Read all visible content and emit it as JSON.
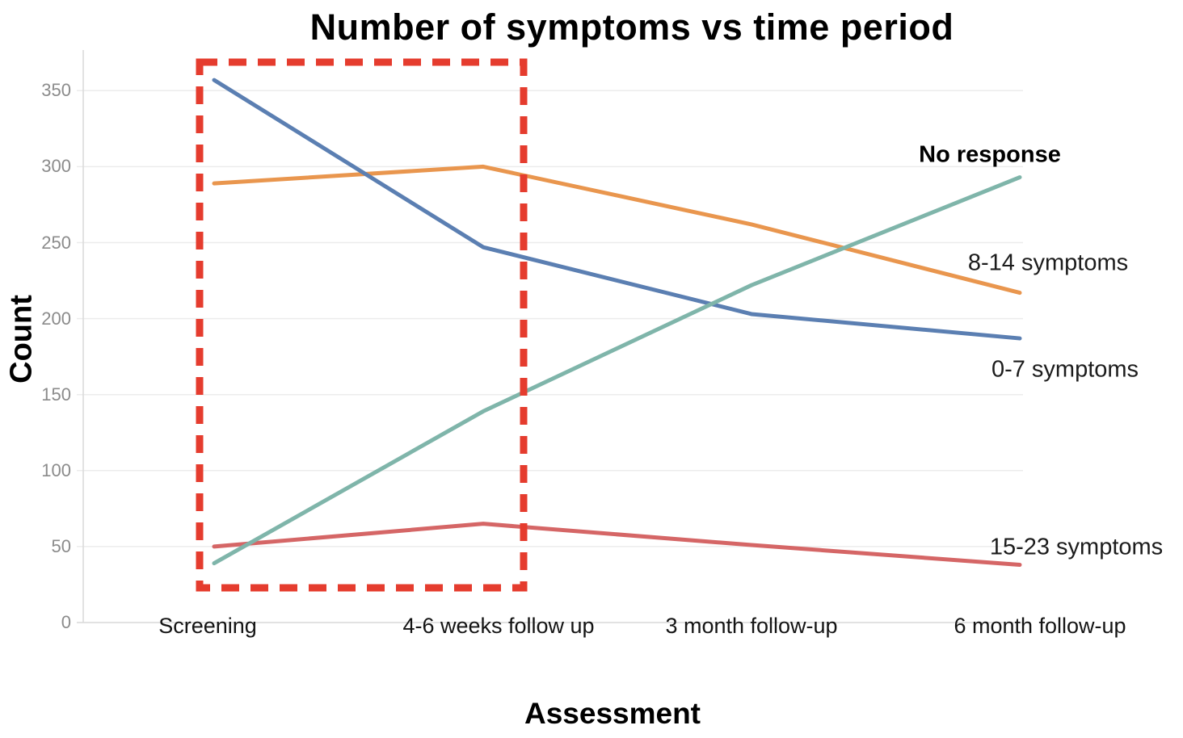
{
  "chart_data": {
    "type": "line",
    "title": "Number of symptoms vs time period",
    "xlabel": "Assessment",
    "ylabel": "Count",
    "categories": [
      "Screening",
      "4-6 weeks follow up",
      "3 month follow-up",
      "6 month follow-up"
    ],
    "y_ticks": [
      0,
      50,
      100,
      150,
      200,
      250,
      300,
      350
    ],
    "ylim": [
      0,
      377
    ],
    "grid": "horizontal",
    "legend_position": "direct-labels-right",
    "series": [
      {
        "name": "No response",
        "color": "#7fb5aa",
        "label_bold": true,
        "values": [
          39,
          139,
          222,
          293
        ]
      },
      {
        "name": "8-14 symptoms",
        "color": "#e9964e",
        "label_bold": false,
        "values": [
          289,
          300,
          262,
          217
        ]
      },
      {
        "name": "0-7 symptoms",
        "color": "#5b7fb2",
        "label_bold": false,
        "values": [
          357,
          247,
          203,
          187
        ]
      },
      {
        "name": "15-23 symptoms",
        "color": "#d56666",
        "label_bold": false,
        "values": [
          50,
          65,
          51,
          38
        ]
      }
    ],
    "annotation": {
      "type": "dashed-rectangle",
      "color": "#e53c2e",
      "covers_categories": [
        "Screening",
        "4-6 weeks follow up"
      ]
    },
    "colors": {
      "gridline": "#ececec",
      "axis_line": "#d9d9d9",
      "tick_label": "#8b8b8b",
      "text": "#000000"
    }
  }
}
